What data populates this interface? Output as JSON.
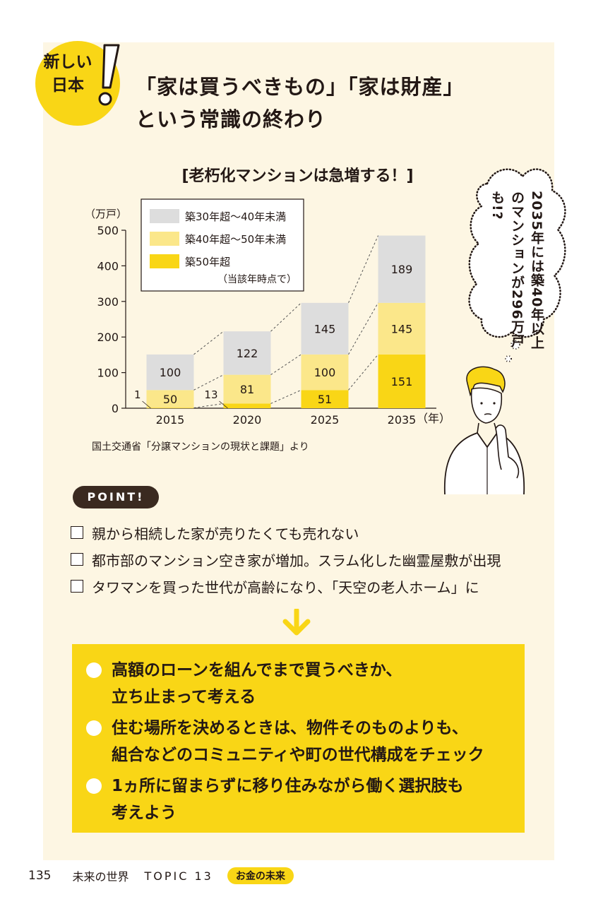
{
  "badge": {
    "line1": "新しい",
    "line2": "日本"
  },
  "headline": {
    "line1": "「家は買うべきもの」「家は財産」",
    "line2": "という常識の終わり"
  },
  "chart_data": {
    "type": "bar",
    "title": "[老朽化マンションは急増する！]",
    "ylabel": "（万戸）",
    "xunit": "（年）",
    "ylim": [
      0,
      500
    ],
    "yticks": [
      "0",
      "100",
      "200",
      "300",
      "400",
      "500"
    ],
    "categories": [
      "2015",
      "2020",
      "2025",
      "2035"
    ],
    "series": [
      {
        "name": "築50年超",
        "values": [
          1,
          13,
          51,
          151
        ],
        "color": "#f9d616"
      },
      {
        "name": "築40年超〜50年未満",
        "values": [
          50,
          81,
          100,
          145
        ],
        "color": "#fbe78a"
      },
      {
        "name": "築30年超〜40年未満",
        "values": [
          100,
          122,
          145,
          189
        ],
        "color": "#dddddd"
      }
    ],
    "legend_note": "（当該年時点で）",
    "legend_position": "top-left",
    "stacked": true
  },
  "bubble": {
    "text": "2035年には築40年以上のマンションが296万戸も!?"
  },
  "source": "国土交通省「分譲マンションの現状と課題」より",
  "point_label": "POINT!",
  "checklist": [
    "親から相続した家が売りたくても売れない",
    "都市部のマンション空き家が増加。スラム化した幽霊屋敷が出現",
    "タワマンを買った世代が高齢になり、「天空の老人ホーム」に"
  ],
  "bullets": [
    {
      "line1": "高額のローンを組んでまで買うべきか、",
      "line2": "立ち止まって考える"
    },
    {
      "line1": "住む場所を決めるときは、物件そのものよりも、",
      "line2": "組合などのコミュニティや町の世代構成をチェック"
    },
    {
      "line1": "1ヵ所に留まらずに移り住みながら働く選択肢も",
      "line2": "考えよう"
    }
  ],
  "footer": {
    "page": "135",
    "series": "未来の世界",
    "topic": "TOPIC 13",
    "tag": "お金の未来"
  },
  "colors": {
    "accent": "#f9d616",
    "panel": "#fdf6e3",
    "pale_yellow": "#fbe78a",
    "gray": "#dddddd",
    "dark": "#3a2a20"
  },
  "icons": [
    "exclamation-icon",
    "down-arrow-icon",
    "thought-bubble",
    "thinking-man-illustration"
  ]
}
